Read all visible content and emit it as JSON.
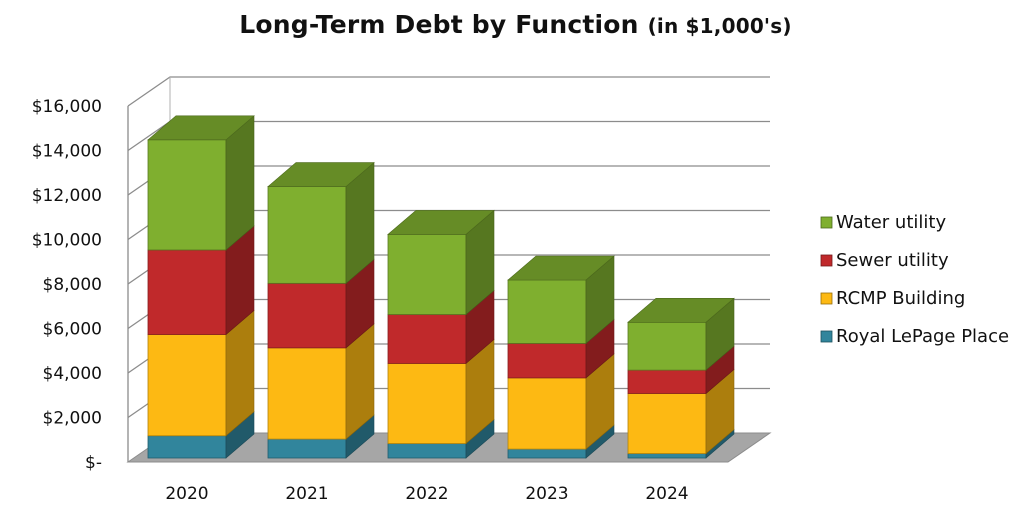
{
  "chart_data": {
    "type": "bar",
    "stacked": true,
    "three_d": true,
    "title": "Long-Term Debt by Function",
    "subtitle": "(in $1,000's)",
    "categories": [
      "2020",
      "2021",
      "2022",
      "2023",
      "2024"
    ],
    "series": [
      {
        "name": "Royal LePage Place",
        "color": "#31859c",
        "values": [
          1000,
          850,
          650,
          400,
          200
        ]
      },
      {
        "name": "RCMP Building",
        "color": "#fdb913",
        "values": [
          4550,
          4100,
          3600,
          3200,
          2700
        ]
      },
      {
        "name": "Sewer utility",
        "color": "#c0292b",
        "values": [
          3800,
          2900,
          2200,
          1550,
          1050
        ]
      },
      {
        "name": "Water utility",
        "color": "#7faf2f",
        "values": [
          4950,
          4350,
          3600,
          2850,
          2150
        ]
      }
    ],
    "yticks": [
      0,
      2000,
      4000,
      6000,
      8000,
      10000,
      12000,
      14000,
      16000
    ],
    "ytick_labels": [
      "$-",
      "$2,000",
      "$4,000",
      "$6,000",
      "$8,000",
      "$10,000",
      "$12,000",
      "$14,000",
      "$16,000"
    ],
    "ylim": [
      0,
      16000
    ],
    "grid": true,
    "legend": "right"
  }
}
